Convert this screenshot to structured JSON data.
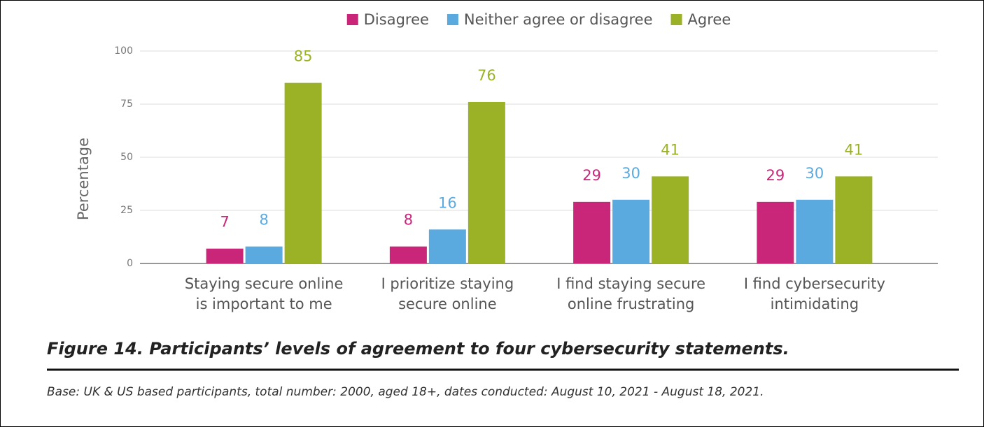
{
  "chart_data": {
    "type": "bar",
    "categories": [
      "Staying secure online is important to me",
      "I prioritize staying secure online",
      "I find staying secure online frustrating",
      "I find cybersecurity intimidating"
    ],
    "series": [
      {
        "name": "Disagree",
        "color": "#c9267a",
        "values": [
          7,
          8,
          29,
          29
        ]
      },
      {
        "name": "Neither agree or disagree",
        "color": "#5aaae0",
        "values": [
          8,
          16,
          30,
          30
        ]
      },
      {
        "name": "Agree",
        "color": "#9bb227",
        "values": [
          85,
          76,
          41,
          41
        ]
      }
    ],
    "ylim": [
      0,
      100
    ],
    "yticks": [
      0,
      25,
      50,
      75,
      100
    ],
    "grid": true,
    "y_label": "Percentage",
    "legend": "top"
  },
  "caption": "Figure 14. Participants’ levels of agreement to four cybersecurity statements.",
  "base": "Base: UK & US based participants, total number: 2000, aged 18+, dates conducted: August 10, 2021 - August 18, 2021."
}
